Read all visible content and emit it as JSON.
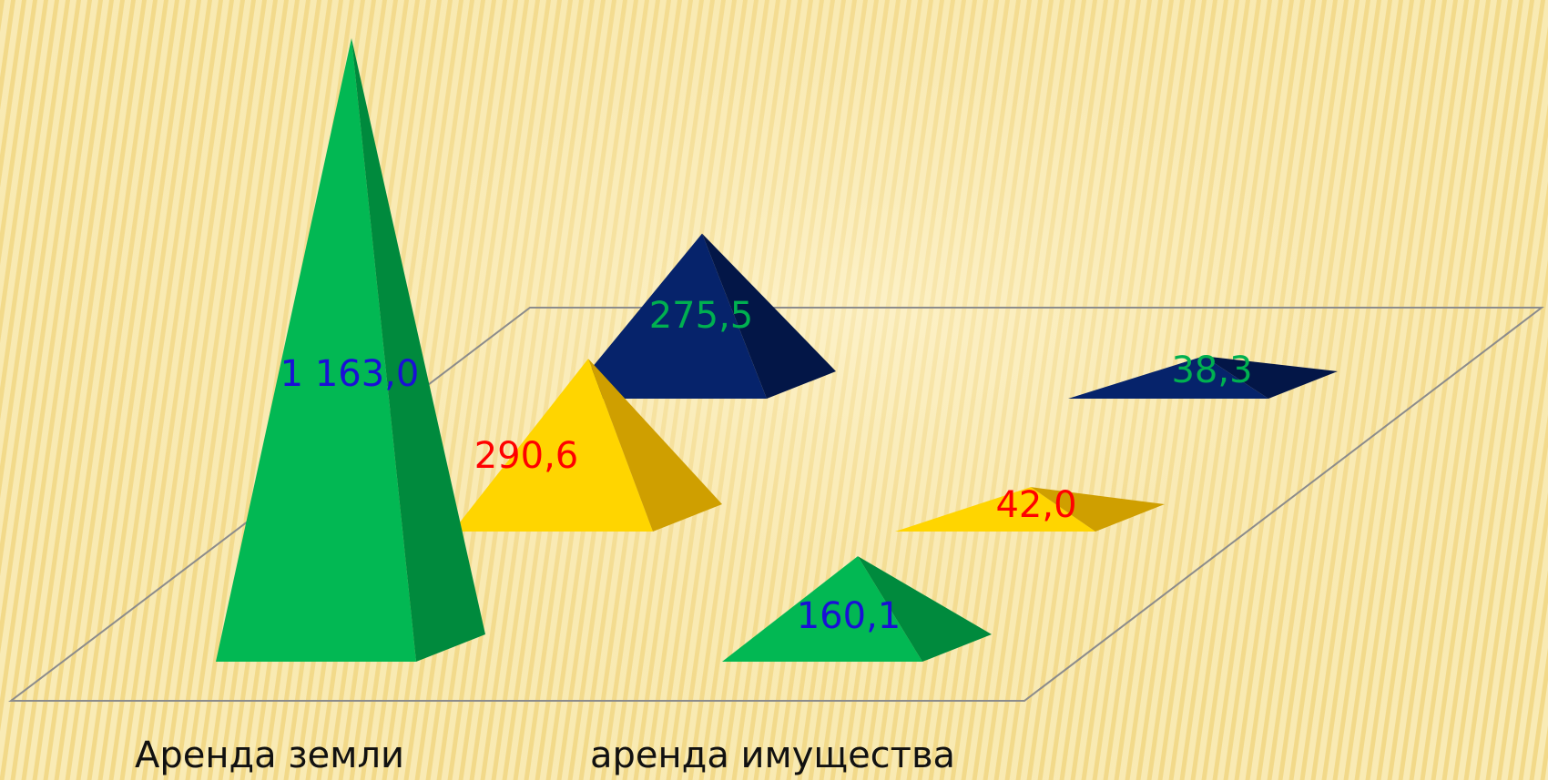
{
  "chart_data": {
    "type": "bar",
    "style": "3d-pyramid",
    "categories": [
      "Аренда земли",
      "аренда имущества"
    ],
    "series": [
      {
        "values": [
          1163.0,
          160.1
        ],
        "labels": [
          "1 163,0",
          "160,1"
        ],
        "color": "#02b853",
        "shade": "#008a3d",
        "label_colors": [
          "#1a0fd6",
          "#1a0fd6"
        ]
      },
      {
        "values": [
          290.6,
          42.0
        ],
        "labels": [
          "290,6",
          "42,0"
        ],
        "color": "#ffd500",
        "shade": "#cf9f00",
        "label_colors": [
          "#ff0000",
          "#ff0000"
        ]
      },
      {
        "values": [
          275.5,
          38.3
        ],
        "labels": [
          "275,5",
          "38,3"
        ],
        "color": "#06236b",
        "shade": "#031647",
        "label_colors": [
          "#00b050",
          "#00b050"
        ]
      }
    ],
    "grid": false,
    "legend": "none"
  },
  "colors": {
    "background": "#f7e6a6",
    "stripe": "#f0d27a",
    "floor_line": "#8c8c8c"
  }
}
